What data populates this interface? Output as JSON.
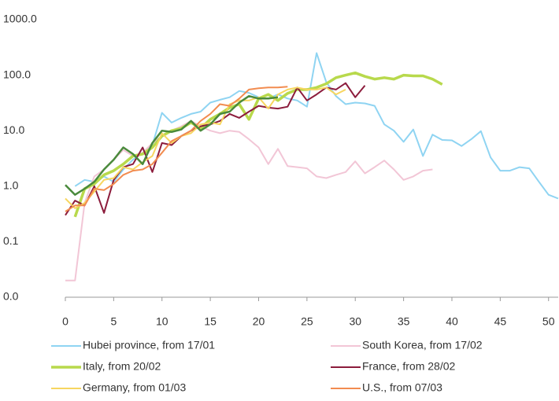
{
  "chart_data": {
    "type": "line",
    "log_scale": true,
    "grid": false,
    "xlim": [
      0,
      51
    ],
    "xticks": [
      0,
      5,
      10,
      15,
      20,
      25,
      30,
      35,
      40,
      45,
      50
    ],
    "ylim": [
      0.01,
      1000
    ],
    "yticks": [
      {
        "value": 0.01,
        "label": "0.0"
      },
      {
        "value": 0.1,
        "label": "0.1"
      },
      {
        "value": 1,
        "label": "1.0"
      },
      {
        "value": 10,
        "label": "10.0"
      },
      {
        "value": 100,
        "label": "100.0"
      },
      {
        "value": 1000,
        "label": "1000.0"
      }
    ],
    "series": [
      {
        "name": "Hubei province, from 17/01",
        "color": "#8fd4f2",
        "width": 2,
        "x": [
          1,
          2,
          3,
          4,
          5,
          6,
          7,
          8,
          9,
          10,
          11,
          12,
          13,
          14,
          15,
          16,
          17,
          18,
          19,
          20,
          21,
          22,
          23,
          24,
          25,
          26,
          27,
          28,
          29,
          30,
          31,
          32,
          33,
          34,
          35,
          36,
          37,
          38,
          39,
          40,
          41,
          42,
          43,
          44,
          45,
          46,
          47,
          48,
          49,
          50,
          51
        ],
        "values": [
          1.0,
          1.3,
          1.2,
          1.5,
          1.2,
          2.0,
          3,
          4,
          5.5,
          21,
          14,
          17,
          20,
          22,
          32,
          36,
          40,
          52,
          48,
          40,
          38,
          45,
          38,
          35,
          27,
          250,
          75,
          42,
          30,
          32,
          31,
          28,
          13,
          10,
          6.3,
          10.5,
          3.5,
          8.5,
          6.8,
          6.7,
          5.3,
          7,
          9.8,
          3.3,
          1.9,
          1.9,
          2.2,
          2.1,
          1.2,
          0.7,
          0.6
        ]
      },
      {
        "name": "South Korea, from 17/02",
        "color": "#f2c6d6",
        "width": 2,
        "x": [
          0,
          1,
          2,
          3,
          4,
          5,
          6,
          7,
          8,
          9,
          10,
          11,
          12,
          13,
          14,
          15,
          16,
          17,
          18,
          19,
          20,
          21,
          22,
          23,
          24,
          25,
          26,
          27,
          28,
          29,
          30,
          31,
          32,
          33,
          34,
          35,
          36,
          37,
          38
        ],
        "values": [
          0.02,
          0.02,
          0.5,
          1.5,
          2,
          3,
          4.5,
          3.5,
          4,
          6,
          8,
          10,
          12,
          15,
          12,
          10,
          9,
          10,
          9.5,
          7,
          5,
          2.5,
          4.7,
          2.3,
          2.2,
          2.1,
          1.5,
          1.4,
          1.6,
          1.8,
          2.8,
          1.7,
          2.2,
          2.9,
          2.0,
          1.3,
          1.5,
          1.9,
          2.0
        ]
      },
      {
        "name": "Italy, from 20/02",
        "color": "#b8d94c",
        "width": 3.5,
        "x": [
          1,
          2,
          3,
          4,
          5,
          6,
          7,
          8,
          9,
          10,
          11,
          12,
          13,
          14,
          15,
          16,
          17,
          18,
          19,
          20,
          21,
          22,
          23,
          24,
          25,
          26,
          27,
          28,
          29,
          30,
          31,
          32,
          33,
          34,
          35,
          36,
          37,
          38,
          39
        ],
        "values": [
          0.28,
          0.9,
          1.1,
          1.6,
          1.9,
          2.5,
          3.5,
          3.8,
          5,
          8,
          10,
          11,
          14,
          11,
          16,
          20,
          26,
          30,
          16,
          38,
          45,
          35,
          47,
          55,
          55,
          60,
          70,
          90,
          100,
          110,
          95,
          85,
          90,
          85,
          100,
          97,
          97,
          85,
          68
        ]
      },
      {
        "name": "France, from 28/02",
        "color": "#8c1c3c",
        "width": 2,
        "x": [
          0,
          1,
          2,
          3,
          4,
          5,
          6,
          7,
          8,
          9,
          10,
          11,
          12,
          13,
          14,
          15,
          16,
          17,
          18,
          19,
          20,
          21,
          22,
          23,
          24,
          25,
          26,
          27,
          28,
          29,
          30,
          31
        ],
        "values": [
          0.3,
          0.55,
          0.45,
          1.0,
          0.33,
          1.3,
          2.2,
          2.5,
          5.0,
          1.8,
          6,
          5.5,
          8,
          10,
          12,
          13,
          15,
          20,
          17,
          22,
          28,
          26,
          25,
          27,
          60,
          35,
          45,
          60,
          55,
          72,
          40,
          65
        ]
      },
      {
        "name": "Germany, from 01/03",
        "color": "#f7d660",
        "width": 2,
        "x": [
          0,
          1,
          2,
          3,
          4,
          5,
          6,
          7,
          8,
          9,
          10,
          11,
          12,
          13,
          14,
          15,
          16,
          17,
          18,
          19,
          20,
          21,
          22,
          23,
          24,
          25,
          26,
          27,
          28,
          29
        ],
        "values": [
          0.6,
          0.4,
          0.5,
          0.8,
          1.3,
          1.4,
          2.2,
          2.0,
          2.7,
          3.5,
          9,
          6,
          8,
          9,
          13,
          14,
          13,
          30,
          35,
          35,
          40,
          25,
          45,
          55,
          60,
          55,
          55,
          60,
          45,
          55
        ]
      },
      {
        "name": "U.S., from 07/03",
        "color": "#f28c50",
        "width": 2,
        "x": [
          0,
          1,
          2,
          3,
          4,
          5,
          6,
          7,
          8,
          9,
          10,
          11,
          12,
          13,
          14,
          15,
          16,
          17,
          18,
          19,
          20,
          21,
          22,
          23
        ],
        "values": [
          0.35,
          0.45,
          0.45,
          0.9,
          0.85,
          1.1,
          1.6,
          1.9,
          2.0,
          2.5,
          4,
          6.5,
          8,
          10,
          15,
          20,
          30,
          28,
          38,
          55,
          58,
          60,
          60,
          62
        ]
      },
      {
        "color": "#4a8a3c",
        "width": 2.5,
        "x": [
          0,
          1,
          2,
          3,
          4,
          5,
          6,
          7,
          8,
          9,
          10,
          11,
          12,
          13,
          14,
          15,
          16,
          17,
          18,
          19,
          20,
          21,
          22
        ],
        "values": [
          1.05,
          0.7,
          0.9,
          1.2,
          2,
          3,
          5,
          3.8,
          2.5,
          6,
          10,
          9.5,
          10.5,
          15,
          10,
          13,
          20,
          22,
          32,
          42,
          38,
          38,
          40
        ]
      }
    ]
  }
}
